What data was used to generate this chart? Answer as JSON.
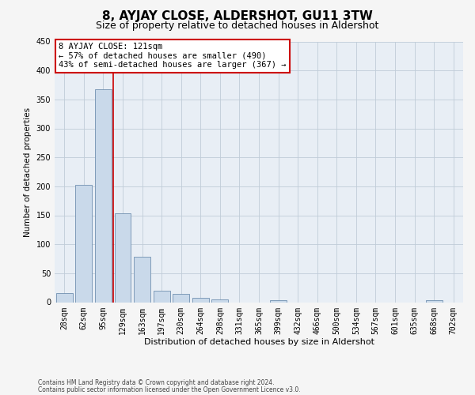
{
  "title": "8, AYJAY CLOSE, ALDERSHOT, GU11 3TW",
  "subtitle": "Size of property relative to detached houses in Aldershot",
  "xlabel": "Distribution of detached houses by size in Aldershot",
  "ylabel": "Number of detached properties",
  "footer_line1": "Contains HM Land Registry data © Crown copyright and database right 2024.",
  "footer_line2": "Contains public sector information licensed under the Open Government Licence v3.0.",
  "categories": [
    "28sqm",
    "62sqm",
    "95sqm",
    "129sqm",
    "163sqm",
    "197sqm",
    "230sqm",
    "264sqm",
    "298sqm",
    "331sqm",
    "365sqm",
    "399sqm",
    "432sqm",
    "466sqm",
    "500sqm",
    "534sqm",
    "567sqm",
    "601sqm",
    "635sqm",
    "668sqm",
    "702sqm"
  ],
  "values": [
    16,
    202,
    368,
    153,
    78,
    20,
    14,
    7,
    5,
    0,
    0,
    4,
    0,
    0,
    0,
    0,
    0,
    0,
    0,
    4,
    0
  ],
  "bar_color": "#c9d9ea",
  "bar_edge_color": "#7090b0",
  "grid_color": "#c0ccd8",
  "background_color": "#e8eef5",
  "fig_background_color": "#f5f5f5",
  "annotation_box_color": "#ffffff",
  "annotation_border_color": "#cc0000",
  "red_line_color": "#cc0000",
  "red_line_x": 3.0,
  "annotation_text_line1": "8 AYJAY CLOSE: 121sqm",
  "annotation_text_line2": "← 57% of detached houses are smaller (490)",
  "annotation_text_line3": "43% of semi-detached houses are larger (367) →",
  "ylim": [
    0,
    450
  ],
  "yticks": [
    0,
    50,
    100,
    150,
    200,
    250,
    300,
    350,
    400,
    450
  ],
  "title_fontsize": 11,
  "subtitle_fontsize": 9,
  "ylabel_fontsize": 7.5,
  "xlabel_fontsize": 8,
  "annotation_fontsize": 7.5,
  "tick_fontsize": 7,
  "footer_fontsize": 5.5
}
